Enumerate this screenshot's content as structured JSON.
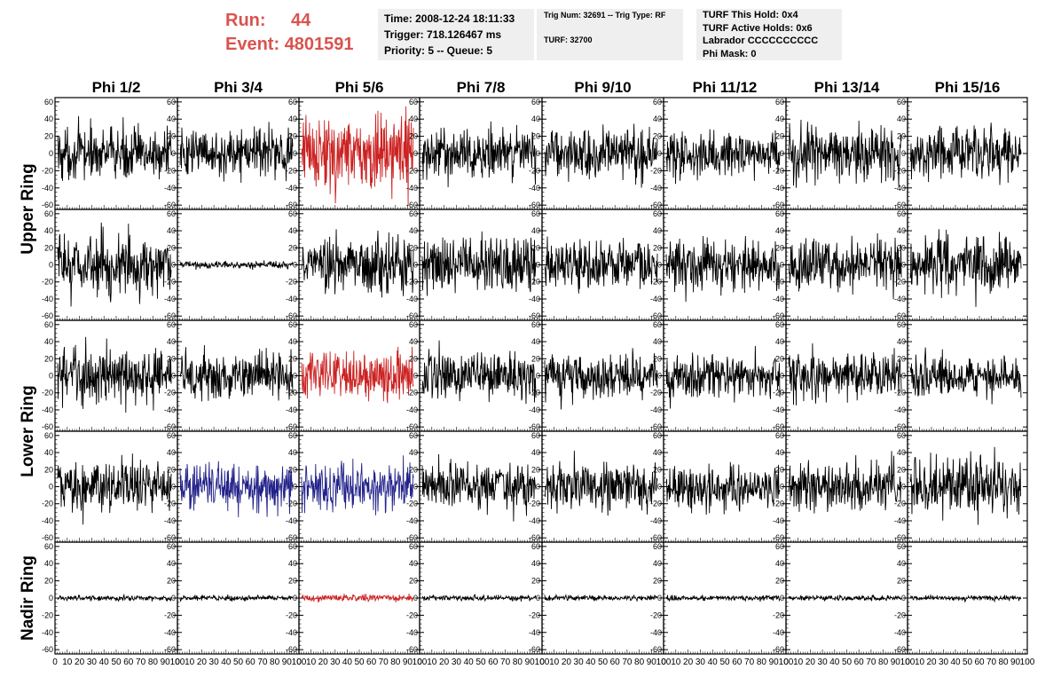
{
  "run_info": {
    "run_label": "Run:",
    "run_value": "44",
    "event_label": "Event:",
    "event_value": "4801591"
  },
  "time_box": {
    "line1": "Time: 2008-12-24 18:11:33",
    "line2": "Trigger: 718.126467 ms",
    "line3": "Priority: 5 -- Queue: 5"
  },
  "trig_box": {
    "line1": "Trig Num: 32691 -- Trig Type: RF",
    "line2": "TURF: 32700"
  },
  "turf_box": {
    "line1": "TURF This Hold: 0x4",
    "line2": "TURF Active Holds: 0x6",
    "line3": "Labrador CCCCCCCCCC",
    "line4": "Phi Mask: 0"
  },
  "colors": {
    "normal_trace": "#000000",
    "triggered_trace_red": "#cc2222",
    "triggered_trace_blue": "#22228a",
    "info_text": "#d9534f",
    "info_box_bg": "#efefef"
  },
  "chart_data": {
    "type": "line",
    "columns": [
      "Phi 1/2",
      "Phi 3/4",
      "Phi 5/6",
      "Phi 7/8",
      "Phi 9/10",
      "Phi 11/12",
      "Phi 13/14",
      "Phi 15/16"
    ],
    "rows": [
      "Upper Ring",
      "Lower Ring",
      "Nadir Ring"
    ],
    "sub_rows_per_ring": [
      2,
      2,
      1
    ],
    "ylim": [
      -65,
      65
    ],
    "yticks": [
      -60,
      -40,
      -20,
      0,
      20,
      40,
      60
    ],
    "xlim": [
      0,
      100
    ],
    "xticks": [
      0,
      10,
      20,
      30,
      40,
      50,
      60,
      70,
      80,
      90,
      100
    ],
    "x_tick_labels": [
      "0",
      "10",
      "20",
      "30",
      "40",
      "50",
      "60",
      "70",
      "80",
      "90",
      "100"
    ],
    "grid": false,
    "samples_per_trace": 256,
    "traces": [
      {
        "row": 0,
        "col": 0,
        "amplitude": 15,
        "color": "normal_trace"
      },
      {
        "row": 0,
        "col": 1,
        "amplitude": 13,
        "color": "normal_trace"
      },
      {
        "row": 0,
        "col": 2,
        "amplitude": 22,
        "color": "triggered_trace_red"
      },
      {
        "row": 0,
        "col": 3,
        "amplitude": 15,
        "color": "normal_trace"
      },
      {
        "row": 0,
        "col": 4,
        "amplitude": 15,
        "color": "normal_trace"
      },
      {
        "row": 0,
        "col": 5,
        "amplitude": 13,
        "color": "normal_trace"
      },
      {
        "row": 0,
        "col": 6,
        "amplitude": 16,
        "color": "normal_trace"
      },
      {
        "row": 0,
        "col": 7,
        "amplitude": 15,
        "color": "normal_trace"
      },
      {
        "row": 1,
        "col": 0,
        "amplitude": 18,
        "color": "normal_trace"
      },
      {
        "row": 1,
        "col": 1,
        "amplitude": 2,
        "color": "normal_trace"
      },
      {
        "row": 1,
        "col": 2,
        "amplitude": 16,
        "color": "normal_trace"
      },
      {
        "row": 1,
        "col": 3,
        "amplitude": 16,
        "color": "normal_trace"
      },
      {
        "row": 1,
        "col": 4,
        "amplitude": 14,
        "color": "normal_trace"
      },
      {
        "row": 1,
        "col": 5,
        "amplitude": 15,
        "color": "normal_trace"
      },
      {
        "row": 1,
        "col": 6,
        "amplitude": 15,
        "color": "normal_trace"
      },
      {
        "row": 1,
        "col": 7,
        "amplitude": 18,
        "color": "normal_trace"
      },
      {
        "row": 2,
        "col": 0,
        "amplitude": 17,
        "color": "normal_trace"
      },
      {
        "row": 2,
        "col": 1,
        "amplitude": 14,
        "color": "normal_trace"
      },
      {
        "row": 2,
        "col": 2,
        "amplitude": 14,
        "color": "triggered_trace_red"
      },
      {
        "row": 2,
        "col": 3,
        "amplitude": 15,
        "color": "normal_trace"
      },
      {
        "row": 2,
        "col": 4,
        "amplitude": 14,
        "color": "normal_trace"
      },
      {
        "row": 2,
        "col": 5,
        "amplitude": 13,
        "color": "normal_trace"
      },
      {
        "row": 2,
        "col": 6,
        "amplitude": 14,
        "color": "normal_trace"
      },
      {
        "row": 2,
        "col": 7,
        "amplitude": 12,
        "color": "normal_trace"
      },
      {
        "row": 3,
        "col": 0,
        "amplitude": 16,
        "color": "normal_trace"
      },
      {
        "row": 3,
        "col": 1,
        "amplitude": 14,
        "color": "triggered_trace_blue"
      },
      {
        "row": 3,
        "col": 2,
        "amplitude": 14,
        "color": "triggered_trace_blue"
      },
      {
        "row": 3,
        "col": 3,
        "amplitude": 14,
        "color": "normal_trace"
      },
      {
        "row": 3,
        "col": 4,
        "amplitude": 14,
        "color": "normal_trace"
      },
      {
        "row": 3,
        "col": 5,
        "amplitude": 13,
        "color": "normal_trace"
      },
      {
        "row": 3,
        "col": 6,
        "amplitude": 14,
        "color": "normal_trace"
      },
      {
        "row": 3,
        "col": 7,
        "amplitude": 17,
        "color": "normal_trace"
      },
      {
        "row": 4,
        "col": 0,
        "amplitude": 1.5,
        "color": "normal_trace"
      },
      {
        "row": 4,
        "col": 1,
        "amplitude": 1.5,
        "color": "normal_trace"
      },
      {
        "row": 4,
        "col": 2,
        "amplitude": 2,
        "color": "triggered_trace_red"
      },
      {
        "row": 4,
        "col": 3,
        "amplitude": 1.5,
        "color": "normal_trace"
      },
      {
        "row": 4,
        "col": 4,
        "amplitude": 1.5,
        "color": "normal_trace"
      },
      {
        "row": 4,
        "col": 5,
        "amplitude": 1.5,
        "color": "normal_trace"
      },
      {
        "row": 4,
        "col": 6,
        "amplitude": 1.5,
        "color": "normal_trace"
      },
      {
        "row": 4,
        "col": 7,
        "amplitude": 1.5,
        "color": "normal_trace"
      }
    ]
  }
}
